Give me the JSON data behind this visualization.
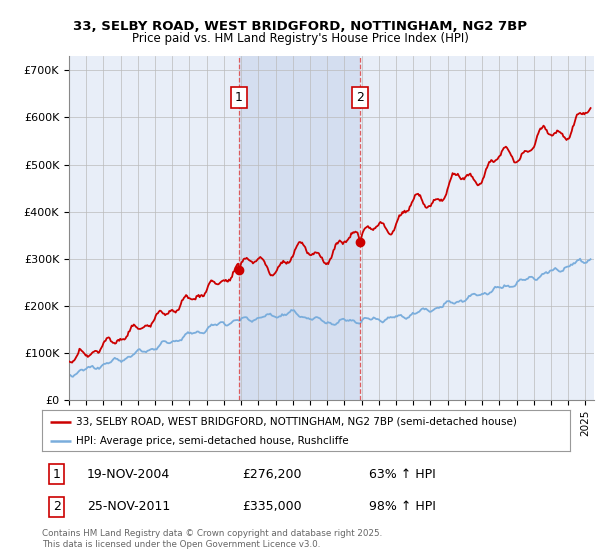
{
  "title1": "33, SELBY ROAD, WEST BRIDGFORD, NOTTINGHAM, NG2 7BP",
  "title2": "Price paid vs. HM Land Registry's House Price Index (HPI)",
  "xlim_start": 1995.0,
  "xlim_end": 2025.5,
  "ylim": [
    0,
    730000
  ],
  "yticks": [
    0,
    100000,
    200000,
    300000,
    400000,
    500000,
    600000,
    700000
  ],
  "ytick_labels": [
    "£0",
    "£100K",
    "£200K",
    "£300K",
    "£400K",
    "£500K",
    "£600K",
    "£700K"
  ],
  "legend_line1": "33, SELBY ROAD, WEST BRIDGFORD, NOTTINGHAM, NG2 7BP (semi-detached house)",
  "legend_line2": "HPI: Average price, semi-detached house, Rushcliffe",
  "transaction1_x": 2004.88,
  "transaction1_y": 276200,
  "transaction2_x": 2011.9,
  "transaction2_y": 335000,
  "footer": "Contains HM Land Registry data © Crown copyright and database right 2025.\nThis data is licensed under the Open Government Licence v3.0.",
  "table_row1": [
    "1",
    "19-NOV-2004",
    "£276,200",
    "63% ↑ HPI"
  ],
  "table_row2": [
    "2",
    "25-NOV-2011",
    "£335,000",
    "98% ↑ HPI"
  ],
  "red_color": "#cc0000",
  "blue_color": "#7aaddc",
  "bg_color": "#ffffff",
  "plot_bg": "#e8eef8",
  "shade_color": "#ccd8ee",
  "vline_color": "#dd4444",
  "grid_color": "#bbbbbb"
}
